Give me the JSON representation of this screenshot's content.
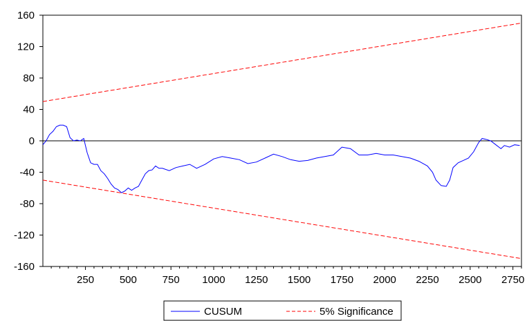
{
  "chart_data": {
    "type": "line",
    "title": "",
    "xlabel": "",
    "ylabel": "",
    "xlim": [
      1,
      2800
    ],
    "ylim": [
      -160,
      160
    ],
    "x_ticks": [
      250,
      500,
      750,
      1000,
      1250,
      1500,
      1750,
      2000,
      2250,
      2500,
      2750
    ],
    "y_ticks": [
      160,
      120,
      80,
      40,
      0,
      -40,
      -80,
      -120,
      -160
    ],
    "x_tick_labels": [
      "250",
      "500",
      "750",
      "1000",
      "1250",
      "1500",
      "1750",
      "2000",
      "2250",
      "2500",
      "2750"
    ],
    "y_tick_labels": [
      "160",
      "120",
      "80",
      "40",
      "0",
      "-40",
      "-80",
      "-120",
      "-160"
    ],
    "zero_line": true,
    "grid": false,
    "legend_position": "bottom",
    "series": [
      {
        "name": "CUSUM",
        "color": "#0000ff",
        "style": "solid",
        "x": [
          1,
          20,
          40,
          60,
          80,
          100,
          120,
          140,
          160,
          180,
          200,
          220,
          240,
          260,
          280,
          300,
          320,
          340,
          360,
          380,
          400,
          420,
          440,
          460,
          480,
          500,
          520,
          540,
          560,
          580,
          600,
          620,
          640,
          660,
          680,
          700,
          740,
          780,
          820,
          860,
          900,
          950,
          1000,
          1050,
          1100,
          1150,
          1200,
          1250,
          1300,
          1350,
          1400,
          1450,
          1500,
          1550,
          1600,
          1650,
          1700,
          1750,
          1800,
          1850,
          1900,
          1950,
          2000,
          2050,
          2100,
          2150,
          2200,
          2250,
          2280,
          2300,
          2330,
          2360,
          2380,
          2400,
          2430,
          2460,
          2490,
          2520,
          2550,
          2570,
          2590,
          2620,
          2650,
          2680,
          2700,
          2730,
          2760,
          2790
        ],
        "y": [
          -5,
          0,
          8,
          12,
          18,
          20,
          20,
          18,
          4,
          0,
          1,
          0,
          3,
          -15,
          -28,
          -30,
          -30,
          -38,
          -42,
          -48,
          -55,
          -60,
          -62,
          -66,
          -64,
          -60,
          -63,
          -60,
          -58,
          -50,
          -42,
          -38,
          -37,
          -32,
          -35,
          -35,
          -38,
          -34,
          -32,
          -30,
          -35,
          -30,
          -23,
          -20,
          -22,
          -24,
          -29,
          -27,
          -22,
          -17,
          -20,
          -24,
          -26,
          -25,
          -22,
          -20,
          -18,
          -8,
          -10,
          -18,
          -18,
          -16,
          -18,
          -18,
          -20,
          -22,
          -26,
          -32,
          -40,
          -50,
          -57,
          -58,
          -50,
          -34,
          -28,
          -25,
          -22,
          -14,
          -2,
          3,
          2,
          0,
          -5,
          -10,
          -6,
          -8,
          -5,
          -6
        ]
      },
      {
        "name": "5% Significance",
        "color": "#ff0000",
        "style": "dashed",
        "x": [
          1,
          2800
        ],
        "y": [
          50,
          150
        ]
      },
      {
        "name": "5% Significance",
        "color": "#ff0000",
        "style": "dashed",
        "legend": false,
        "x": [
          1,
          2800
        ],
        "y": [
          -50,
          -150
        ]
      }
    ]
  }
}
